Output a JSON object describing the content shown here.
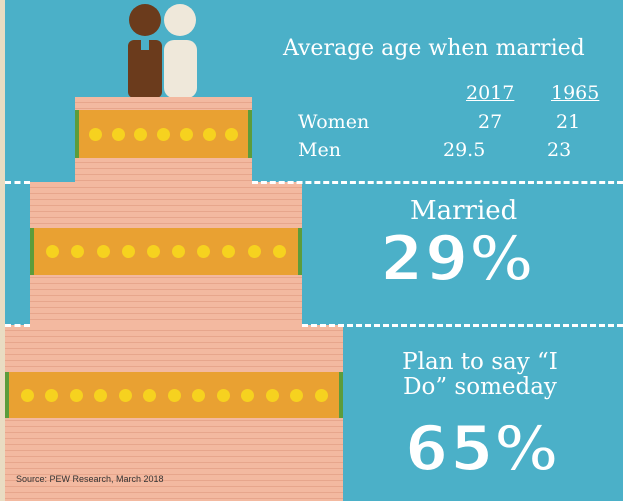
{
  "header": {
    "title": "Average age when married"
  },
  "table": {
    "columns": [
      "2017",
      "1965"
    ],
    "rows": [
      [
        "Women",
        "27",
        "21"
      ],
      [
        "Men",
        "29.5",
        "23"
      ]
    ]
  },
  "married": {
    "label": "Married",
    "value": "29%"
  },
  "plan": {
    "label": "Plan to say “I Do” someday",
    "value": "65%"
  },
  "source": "Source: PEW Research, March 2018"
}
